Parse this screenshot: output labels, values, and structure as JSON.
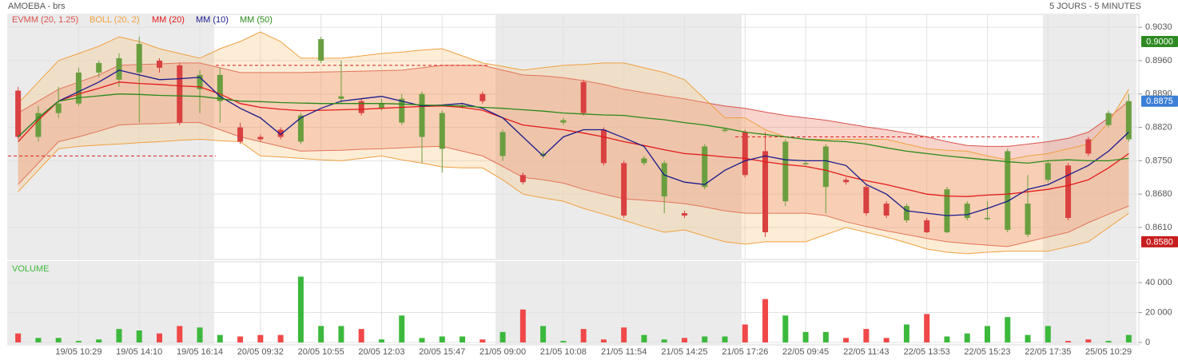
{
  "chart_data": [
    {
      "type": "candlestick",
      "title": "AMOEBA - brs",
      "subtitle": "5 JOURS - 5 MINUTES",
      "up_color": "#6a9e3f",
      "down_color": "#d94040",
      "open": [
        0.8897,
        0.88,
        0.885,
        0.887,
        0.8935,
        0.892,
        0.8935,
        0.896,
        0.895,
        0.89,
        0.8875,
        0.882,
        0.88,
        0.8815,
        0.879,
        0.896,
        0.888,
        0.8875,
        0.886,
        0.883,
        0.88,
        0.8775,
        0.8865,
        0.889,
        0.876,
        0.872,
        0.876,
        0.883,
        0.8915,
        0.8815,
        0.8745,
        0.8745,
        0.8675,
        0.864,
        0.8695,
        0.8815,
        0.881,
        0.877,
        0.8665,
        0.8745,
        0.8695,
        0.871,
        0.8695,
        0.866,
        0.8625,
        0.8625,
        0.86,
        0.863,
        0.863,
        0.8605,
        0.8595,
        0.871,
        0.874,
        0.8795,
        0.8825,
        0.8795
      ],
      "high": [
        0.8905,
        0.8865,
        0.8905,
        0.8945,
        0.896,
        0.8975,
        0.901,
        0.8965,
        0.8955,
        0.894,
        0.8945,
        0.883,
        0.8805,
        0.882,
        0.885,
        0.901,
        0.896,
        0.888,
        0.888,
        0.889,
        0.8895,
        0.8855,
        0.887,
        0.8895,
        0.8815,
        0.8725,
        0.877,
        0.884,
        0.892,
        0.882,
        0.875,
        0.876,
        0.875,
        0.8645,
        0.8785,
        0.882,
        0.8815,
        0.881,
        0.8795,
        0.875,
        0.8785,
        0.8715,
        0.87,
        0.8665,
        0.866,
        0.863,
        0.8695,
        0.8665,
        0.8665,
        0.8775,
        0.872,
        0.875,
        0.8745,
        0.88,
        0.8855,
        0.889
      ],
      "low": [
        0.8795,
        0.879,
        0.884,
        0.8865,
        0.8925,
        0.8905,
        0.883,
        0.8935,
        0.8825,
        0.885,
        0.883,
        0.8785,
        0.879,
        0.8795,
        0.8785,
        0.8955,
        0.887,
        0.8845,
        0.8855,
        0.8825,
        0.8745,
        0.8725,
        0.886,
        0.887,
        0.875,
        0.87,
        0.8755,
        0.8825,
        0.8845,
        0.874,
        0.863,
        0.874,
        0.864,
        0.863,
        0.869,
        0.881,
        0.8715,
        0.859,
        0.8655,
        0.874,
        0.864,
        0.87,
        0.8635,
        0.863,
        0.862,
        0.8598,
        0.8598,
        0.8625,
        0.8625,
        0.86,
        0.859,
        0.8705,
        0.8625,
        0.876,
        0.882,
        0.879
      ],
      "close": [
        0.88,
        0.885,
        0.887,
        0.8935,
        0.8955,
        0.8965,
        0.8995,
        0.8945,
        0.883,
        0.893,
        0.893,
        0.879,
        0.8795,
        0.88,
        0.8845,
        0.9005,
        0.8885,
        0.885,
        0.887,
        0.888,
        0.889,
        0.885,
        0.8865,
        0.8875,
        0.881,
        0.8705,
        0.8765,
        0.8835,
        0.885,
        0.8745,
        0.8635,
        0.8755,
        0.8745,
        0.8635,
        0.878,
        0.8815,
        0.872,
        0.86,
        0.879,
        0.8745,
        0.878,
        0.8705,
        0.864,
        0.8635,
        0.8655,
        0.86,
        0.869,
        0.866,
        0.863,
        0.877,
        0.866,
        0.8745,
        0.863,
        0.8765,
        0.885,
        0.8875
      ],
      "bands": [
        {
          "name": "EVMM (20, 1.25)",
          "color": "#d9534f",
          "fill": "#e8705a",
          "upper": [
            0.885,
            0.8875,
            0.89,
            0.8915,
            0.893,
            0.895,
            0.8952,
            0.8953,
            0.8955,
            0.8955,
            0.8945,
            0.8935,
            0.8935,
            0.8935,
            0.8935,
            0.8936,
            0.8937,
            0.8938,
            0.8939,
            0.894,
            0.8945,
            0.895,
            0.895,
            0.895,
            0.894,
            0.893,
            0.8928,
            0.8924,
            0.8918,
            0.891,
            0.89,
            0.8893,
            0.8886,
            0.888,
            0.8872,
            0.8865,
            0.886,
            0.8852,
            0.8845,
            0.884,
            0.8835,
            0.8828,
            0.8821,
            0.8815,
            0.8808,
            0.88,
            0.879,
            0.8782,
            0.878,
            0.878,
            0.8785,
            0.879,
            0.8797,
            0.881,
            0.884,
            0.8875
          ],
          "lower": [
            0.87,
            0.8745,
            0.879,
            0.88,
            0.8812,
            0.8825,
            0.8827,
            0.8828,
            0.883,
            0.883,
            0.8815,
            0.88,
            0.879,
            0.878,
            0.877,
            0.8771,
            0.8772,
            0.8774,
            0.8775,
            0.8777,
            0.8779,
            0.878,
            0.877,
            0.876,
            0.8738,
            0.8715,
            0.871,
            0.8703,
            0.869,
            0.868,
            0.867,
            0.8667,
            0.8664,
            0.866,
            0.8653,
            0.8645,
            0.864,
            0.864,
            0.864,
            0.864,
            0.8635,
            0.8622,
            0.8612,
            0.8603,
            0.8595,
            0.8587,
            0.858,
            0.8576,
            0.8573,
            0.857,
            0.858,
            0.859,
            0.86,
            0.862,
            0.8638,
            0.8655
          ]
        },
        {
          "name": "BOLL (20, 2)",
          "color": "#f0a040",
          "fill": "#f7c27a",
          "upper": [
            0.887,
            0.8915,
            0.896,
            0.8975,
            0.899,
            0.901,
            0.9,
            0.8985,
            0.8975,
            0.8965,
            0.8985,
            0.9,
            0.902,
            0.9,
            0.8965,
            0.8965,
            0.8965,
            0.897,
            0.8975,
            0.8978,
            0.8982,
            0.8985,
            0.897,
            0.8955,
            0.8948,
            0.894,
            0.8945,
            0.895,
            0.8952,
            0.8955,
            0.8955,
            0.8945,
            0.8935,
            0.892,
            0.888,
            0.884,
            0.884,
            0.8815,
            0.88,
            0.8795,
            0.8795,
            0.8795,
            0.8795,
            0.8795,
            0.8785,
            0.8775,
            0.8772,
            0.877,
            0.876,
            0.8752,
            0.876,
            0.8765,
            0.8775,
            0.8785,
            0.883,
            0.89
          ],
          "lower": [
            0.8685,
            0.873,
            0.8775,
            0.878,
            0.8783,
            0.8785,
            0.8788,
            0.879,
            0.8793,
            0.8795,
            0.8792,
            0.879,
            0.876,
            0.8758,
            0.8755,
            0.8752,
            0.875,
            0.8755,
            0.876,
            0.8752,
            0.8745,
            0.8737,
            0.8735,
            0.8735,
            0.871,
            0.868,
            0.8672,
            0.8665,
            0.865,
            0.8638,
            0.8625,
            0.8612,
            0.86,
            0.8605,
            0.8592,
            0.858,
            0.8575,
            0.858,
            0.858,
            0.858,
            0.8595,
            0.861,
            0.86,
            0.859,
            0.8578,
            0.8565,
            0.8558,
            0.8555,
            0.8558,
            0.856,
            0.856,
            0.856,
            0.857,
            0.858,
            0.861,
            0.864
          ]
        }
      ],
      "series": [
        {
          "name": "MM (20)",
          "color": "#e31a1c",
          "values": [
            0.879,
            0.8835,
            0.8875,
            0.889,
            0.8902,
            0.8915,
            0.8912,
            0.891,
            0.8907,
            0.8905,
            0.889,
            0.887,
            0.8862,
            0.8858,
            0.8855,
            0.8856,
            0.8857,
            0.8858,
            0.886,
            0.8862,
            0.8864,
            0.8865,
            0.8862,
            0.8856,
            0.884,
            0.8825,
            0.882,
            0.8815,
            0.8808,
            0.88,
            0.879,
            0.8782,
            0.8773,
            0.8765,
            0.8762,
            0.8758,
            0.8755,
            0.8748,
            0.8742,
            0.8738,
            0.873,
            0.8718,
            0.8708,
            0.87,
            0.869,
            0.868,
            0.8676,
            0.8675,
            0.8678,
            0.868,
            0.8685,
            0.869,
            0.8698,
            0.871,
            0.8735,
            0.8765
          ]
        },
        {
          "name": "MM (10)",
          "color": "#1a1a8c",
          "values": [
            0.88,
            0.884,
            0.8875,
            0.8895,
            0.8915,
            0.894,
            0.893,
            0.892,
            0.8922,
            0.8925,
            0.8885,
            0.886,
            0.884,
            0.8805,
            0.884,
            0.886,
            0.8875,
            0.888,
            0.8885,
            0.8875,
            0.8865,
            0.8867,
            0.887,
            0.886,
            0.884,
            0.88,
            0.876,
            0.88,
            0.8815,
            0.8815,
            0.8798,
            0.878,
            0.872,
            0.8705,
            0.87,
            0.873,
            0.875,
            0.876,
            0.8752,
            0.875,
            0.875,
            0.874,
            0.87,
            0.868,
            0.8645,
            0.864,
            0.8635,
            0.8637,
            0.865,
            0.8665,
            0.869,
            0.87,
            0.872,
            0.874,
            0.877,
            0.881
          ]
        },
        {
          "name": "MM (50)",
          "color": "#2a8a1a",
          "values": [
            0.88,
            0.884,
            0.8875,
            0.8882,
            0.8886,
            0.889,
            0.8889,
            0.8887,
            0.8886,
            0.8885,
            0.888,
            0.8875,
            0.8874,
            0.8872,
            0.8871,
            0.887,
            0.887,
            0.887,
            0.887,
            0.8869,
            0.8867,
            0.8866,
            0.8865,
            0.8862,
            0.886,
            0.8857,
            0.8854,
            0.885,
            0.8848,
            0.8846,
            0.8845,
            0.884,
            0.8836,
            0.883,
            0.8825,
            0.8818,
            0.881,
            0.8805,
            0.88,
            0.8795,
            0.8792,
            0.879,
            0.8785,
            0.8777,
            0.877,
            0.8765,
            0.876,
            0.8756,
            0.8752,
            0.8748,
            0.8745,
            0.875,
            0.8752,
            0.875,
            0.875,
            0.8755
          ]
        }
      ],
      "reference_lines": [
        0.895,
        0.876,
        0.88
      ],
      "badges": [
        {
          "value": 0.9,
          "label": "0.9000",
          "color": "#2e8b22"
        },
        {
          "value": 0.8875,
          "label": "0.8875",
          "color": "#3b7fd6"
        },
        {
          "value": 0.858,
          "label": "0.8580",
          "color": "#c81e1e"
        }
      ],
      "ylim": [
        0.8543,
        0.9057
      ],
      "yticks": [
        {
          "value": 0.903,
          "label": "0.9030"
        },
        {
          "value": 0.896,
          "label": "0.8960"
        },
        {
          "value": 0.889,
          "label": "0.8890"
        },
        {
          "value": 0.882,
          "label": "0.8820"
        },
        {
          "value": 0.875,
          "label": "0.8750"
        },
        {
          "value": 0.868,
          "label": "0.8680"
        },
        {
          "value": 0.861,
          "label": "0.8610"
        }
      ],
      "grid": true
    },
    {
      "type": "bar",
      "title": "VOLUME",
      "up_color": "#3cb93c",
      "down_color": "#f04848",
      "categories": [
        null,
        null,
        null,
        "19/05 10:29",
        null,
        null,
        "19/05 14:10",
        null,
        null,
        "19/05 16:14",
        null,
        null,
        "20/05 09:32",
        null,
        null,
        "20/05 10:55",
        null,
        null,
        "20/05 12:03",
        null,
        null,
        "20/05 15:47",
        null,
        null,
        "21/05 09:00",
        null,
        null,
        "21/05 10:08",
        null,
        null,
        "21/05 11:54",
        null,
        null,
        "21/05 14:25",
        null,
        null,
        "21/05 17:26",
        null,
        null,
        "22/05 09:45",
        null,
        null,
        "22/05 11:43",
        null,
        null,
        "22/05 13:53",
        null,
        null,
        "22/05 15:23",
        null,
        null,
        "22/05 17:35",
        null,
        null,
        "25/05 10:29",
        null
      ],
      "values": [
        6000,
        3000,
        3000,
        1000,
        2000,
        9000,
        8000,
        6000,
        11000,
        10000,
        5000,
        4000,
        5000,
        5000,
        44000,
        11000,
        11000,
        9000,
        2000,
        18000,
        3000,
        4000,
        4000,
        2000,
        7000,
        22000,
        11000,
        1000,
        9000,
        2000,
        10000,
        5000,
        2000,
        3000,
        4000,
        4000,
        12000,
        29000,
        18000,
        7000,
        7000,
        3000,
        9000,
        3000,
        12000,
        19000,
        4000,
        6000,
        11000,
        17000,
        5000,
        11000,
        1000,
        2000,
        1000,
        5000
      ],
      "ylim": [
        -1600,
        53900
      ],
      "yticks": [
        {
          "value": 40000,
          "label": "40 000"
        },
        {
          "value": 20000,
          "label": "20 000"
        },
        0
      ],
      "grid": true
    }
  ]
}
